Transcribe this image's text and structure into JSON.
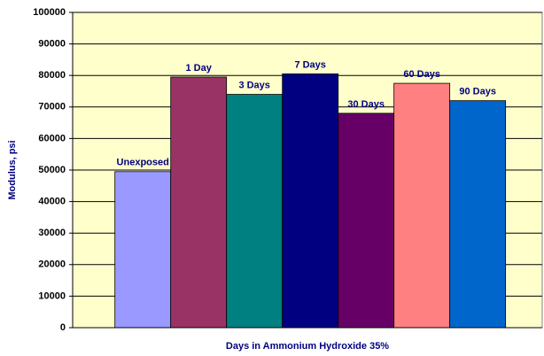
{
  "chart_data": {
    "type": "bar",
    "categories": [
      "Unexposed",
      "1 Day",
      "3 Days",
      "7 Days",
      "30 Days",
      "60 Days",
      "90 Days"
    ],
    "values": [
      49500,
      79500,
      74000,
      80500,
      68000,
      77500,
      72000
    ],
    "colors": [
      "#9999ff",
      "#993366",
      "#008080",
      "#000080",
      "#660066",
      "#ff8080",
      "#0066cc"
    ],
    "x_label": "Days in Ammonium Hydroxide 35%",
    "y_label": "Modulus, psi",
    "ylim": [
      0,
      100000
    ],
    "yticks": [
      0,
      10000,
      20000,
      30000,
      40000,
      50000,
      60000,
      70000,
      80000,
      90000,
      100000
    ],
    "grid": true
  }
}
